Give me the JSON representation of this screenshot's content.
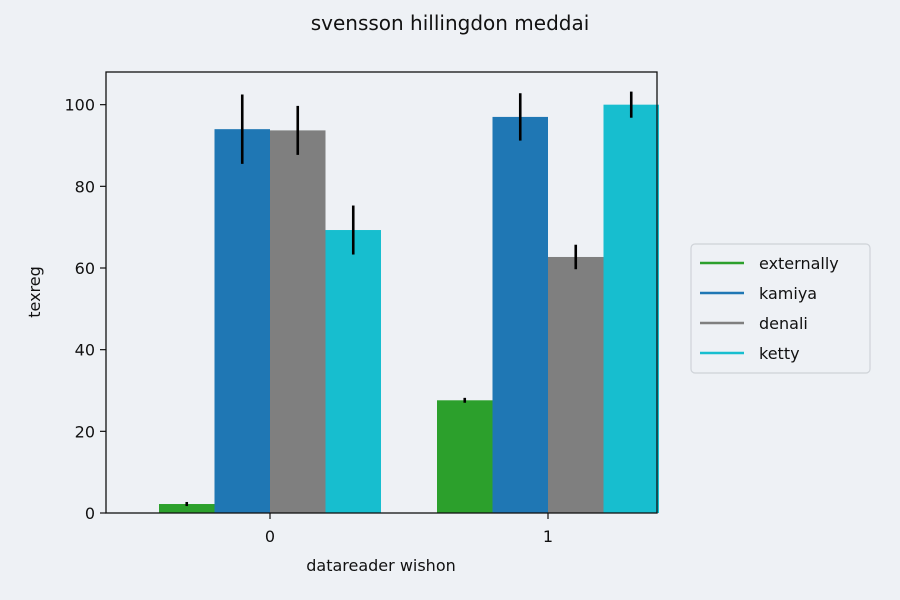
{
  "chart_data": {
    "type": "bar",
    "title": "svensson hillingdon meddai",
    "xlabel": "datareader wishon",
    "ylabel": "texreg",
    "categories": [
      "0",
      "1"
    ],
    "ylim": [
      0,
      108
    ],
    "yticks": [
      0,
      20,
      40,
      60,
      80,
      100
    ],
    "grid": false,
    "legend_position": "right",
    "series": [
      {
        "name": "externally",
        "color": "#2ca02c",
        "values": [
          2.2,
          27.6
        ],
        "errors": [
          0.5,
          0.6
        ]
      },
      {
        "name": "kamiya",
        "color": "#1f77b4",
        "values": [
          94.0,
          97.0
        ],
        "errors": [
          8.5,
          5.8
        ]
      },
      {
        "name": "denali",
        "color": "#7f7f7f",
        "values": [
          93.7,
          62.7
        ],
        "errors": [
          6.0,
          3.0
        ]
      },
      {
        "name": "ketty",
        "color": "#17becf",
        "values": [
          69.3,
          100.0
        ],
        "errors": [
          6.0,
          3.2
        ]
      }
    ]
  }
}
